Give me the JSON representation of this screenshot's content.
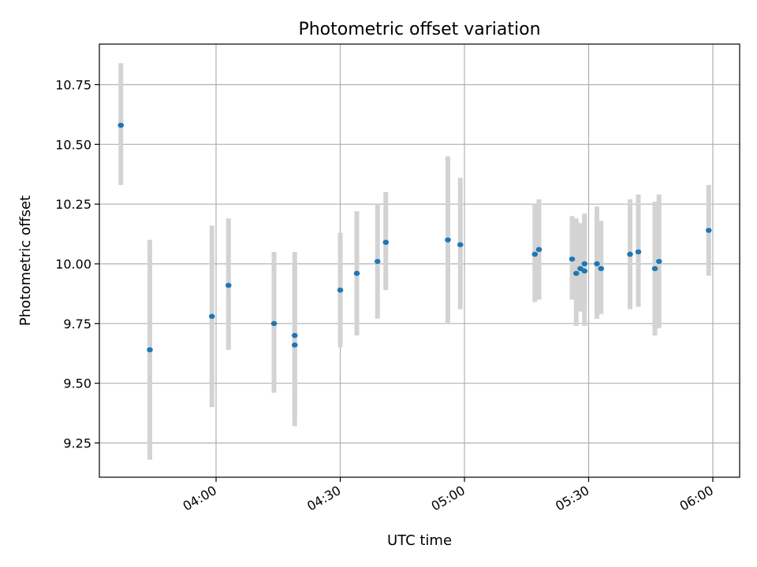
{
  "chart_data": {
    "type": "scatter",
    "title": "Photometric offset variation",
    "xlabel": "UTC time",
    "ylabel": "Photometric offset",
    "x_ticks": [
      "04:00",
      "04:30",
      "05:00",
      "05:30",
      "06:00"
    ],
    "y_ticks": [
      "9.25",
      "9.50",
      "9.75",
      "10.00",
      "10.25",
      "10.50",
      "10.75"
    ],
    "xlim": [
      "03:43",
      "06:06"
    ],
    "ylim": [
      9.1,
      10.92
    ],
    "grid": true,
    "point_color": "#1f77b4",
    "errorbar_color": "#d3d3d3",
    "points": [
      {
        "x": "03:37",
        "y": 10.58,
        "low": 10.33,
        "high": 10.84
      },
      {
        "x": "03:44",
        "y": 9.64,
        "low": 9.18,
        "high": 10.1
      },
      {
        "x": "03:59",
        "y": 9.78,
        "low": 9.4,
        "high": 10.16
      },
      {
        "x": "04:03",
        "y": 9.91,
        "low": 9.64,
        "high": 10.19
      },
      {
        "x": "04:14",
        "y": 9.75,
        "low": 9.46,
        "high": 10.05
      },
      {
        "x": "04:19",
        "y": 9.7,
        "low": 9.36,
        "high": 10.05
      },
      {
        "x": "04:19",
        "y": 9.66,
        "low": 9.32,
        "high": 10.0
      },
      {
        "x": "04:30",
        "y": 9.89,
        "low": 9.65,
        "high": 10.13
      },
      {
        "x": "04:34",
        "y": 9.96,
        "low": 9.7,
        "high": 10.22
      },
      {
        "x": "04:39",
        "y": 10.01,
        "low": 9.77,
        "high": 10.25
      },
      {
        "x": "04:41",
        "y": 10.09,
        "low": 9.89,
        "high": 10.3
      },
      {
        "x": "04:56",
        "y": 10.1,
        "low": 9.75,
        "high": 10.45
      },
      {
        "x": "04:59",
        "y": 10.08,
        "low": 9.81,
        "high": 10.36
      },
      {
        "x": "05:17",
        "y": 10.04,
        "low": 9.84,
        "high": 10.25
      },
      {
        "x": "05:18",
        "y": 10.06,
        "low": 9.85,
        "high": 10.27
      },
      {
        "x": "05:26",
        "y": 10.02,
        "low": 9.85,
        "high": 10.2
      },
      {
        "x": "05:27",
        "y": 9.96,
        "low": 9.74,
        "high": 10.19
      },
      {
        "x": "05:28",
        "y": 9.98,
        "low": 9.8,
        "high": 10.17
      },
      {
        "x": "05:29",
        "y": 10.0,
        "low": 9.82,
        "high": 10.2
      },
      {
        "x": "05:29",
        "y": 9.97,
        "low": 9.74,
        "high": 10.21
      },
      {
        "x": "05:32",
        "y": 10.0,
        "low": 9.77,
        "high": 10.24
      },
      {
        "x": "05:33",
        "y": 9.98,
        "low": 9.79,
        "high": 10.18
      },
      {
        "x": "05:40",
        "y": 10.04,
        "low": 9.81,
        "high": 10.27
      },
      {
        "x": "05:42",
        "y": 10.05,
        "low": 9.82,
        "high": 10.29
      },
      {
        "x": "05:46",
        "y": 9.98,
        "low": 9.7,
        "high": 10.26
      },
      {
        "x": "05:47",
        "y": 10.01,
        "low": 9.73,
        "high": 10.29
      },
      {
        "x": "05:59",
        "y": 10.14,
        "low": 9.95,
        "high": 10.33
      }
    ]
  }
}
